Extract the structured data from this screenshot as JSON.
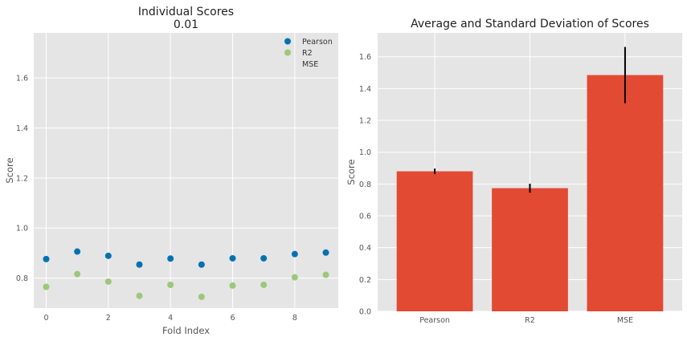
{
  "chart_data": [
    {
      "type": "scatter",
      "title": "Individual Scores",
      "subtitle": "0.01",
      "xlabel": "Fold Index",
      "ylabel": "Score",
      "xlim": [
        -0.4,
        9.4
      ],
      "ylim": [
        0.68,
        1.78
      ],
      "xticks": [
        0,
        2,
        4,
        6,
        8
      ],
      "yticks": [
        0.8,
        1.0,
        1.2,
        1.4,
        1.6
      ],
      "ytick_labels": [
        "0.8",
        "1.0",
        "1.2",
        "1.4",
        "1.6"
      ],
      "legend_position": "top-right",
      "series": [
        {
          "name": "Pearson",
          "color": "#0072b2",
          "x": [
            0,
            1,
            2,
            3,
            4,
            5,
            6,
            7,
            8,
            9
          ],
          "y": [
            0.876,
            0.906,
            0.889,
            0.854,
            0.878,
            0.854,
            0.879,
            0.879,
            0.896,
            0.902
          ]
        },
        {
          "name": "R2",
          "color": "#9dc77a",
          "x": [
            0,
            1,
            2,
            3,
            4,
            5,
            6,
            7,
            8,
            9
          ],
          "y": [
            0.765,
            0.816,
            0.786,
            0.729,
            0.773,
            0.725,
            0.77,
            0.773,
            0.803,
            0.813
          ]
        },
        {
          "name": "MSE",
          "color": "#e24a33",
          "x": [],
          "y": []
        }
      ]
    },
    {
      "type": "bar",
      "title": "Average and Standard Deviation of Scores",
      "xlabel": "",
      "ylabel": "Score",
      "ylim": [
        0,
        1.75
      ],
      "yticks": [
        0.0,
        0.2,
        0.4,
        0.6,
        0.8,
        1.0,
        1.2,
        1.4,
        1.6
      ],
      "ytick_labels": [
        "0.0",
        "0.2",
        "0.4",
        "0.6",
        "0.8",
        "1.0",
        "1.2",
        "1.4",
        "1.6"
      ],
      "categories": [
        "Pearson",
        "R2",
        "MSE"
      ],
      "values": [
        0.88,
        0.774,
        1.485
      ],
      "errors": [
        0.017,
        0.028,
        0.177
      ],
      "bar_color": "#e24a33",
      "error_color": "#000000"
    }
  ]
}
